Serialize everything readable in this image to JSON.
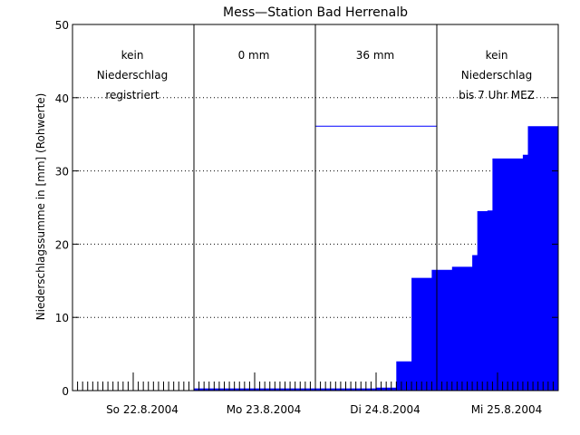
{
  "chart_data": {
    "type": "area",
    "title": "Mess—Station Bad Herrenalb",
    "ylabel": "Niederschlagssumme in [mm] (Rohwerte)",
    "xlabel": "",
    "ylim": [
      0,
      50
    ],
    "yticks": [
      0,
      10,
      20,
      30,
      40,
      50
    ],
    "grid": "dotted horizontal",
    "days": [
      {
        "label": "So 22.8.2004",
        "annotation": [
          "kein",
          "Niederschlag",
          "registriert"
        ]
      },
      {
        "label": "Mo 23.8.2004",
        "annotation": [
          "0 mm"
        ]
      },
      {
        "label": "Di 24.8.2004",
        "annotation": [
          "36 mm"
        ]
      },
      {
        "label": "Mi 25.8.2004",
        "annotation": [
          "kein",
          "Niederschlag",
          "bis 7 Uhr MEZ"
        ]
      }
    ],
    "series": [
      {
        "color": "#0000ff",
        "x_hours": [
          24,
          48,
          60,
          64,
          67,
          71,
          72,
          75,
          79,
          80,
          81,
          82,
          83,
          84,
          89,
          90,
          94,
          95,
          96
        ],
        "values": [
          0.3,
          0.3,
          0.4,
          4.0,
          15.4,
          16.5,
          16.5,
          16.9,
          18.5,
          24.5,
          24.5,
          24.6,
          31.7,
          31.7,
          32.2,
          36.1,
          36.1,
          36.1,
          36.1
        ]
      }
    ],
    "day_total_marker": {
      "day_index": 2,
      "value": 36.1
    }
  }
}
